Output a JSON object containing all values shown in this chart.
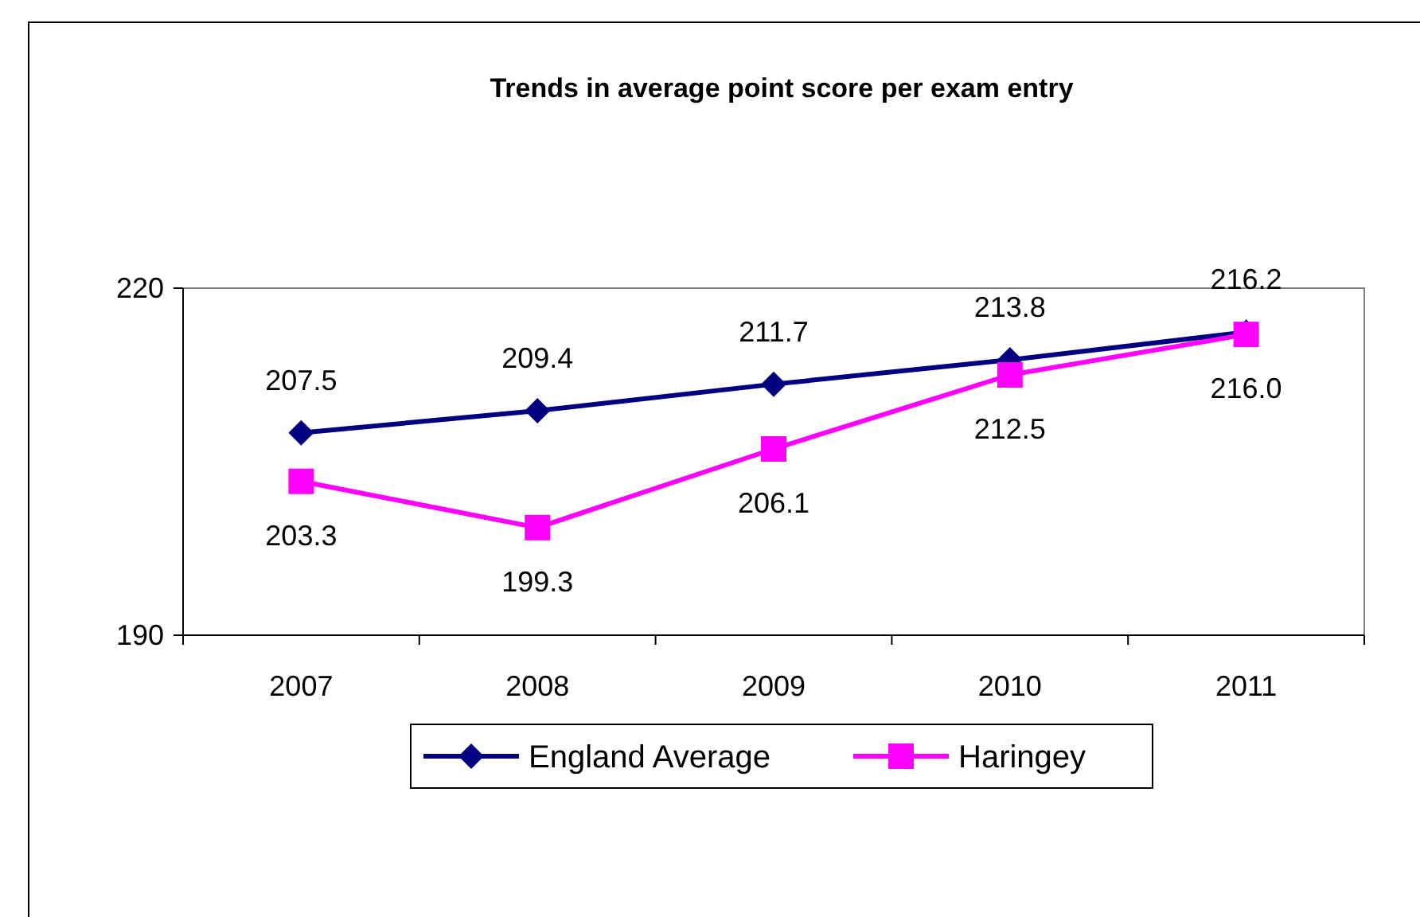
{
  "chart_data": {
    "type": "line",
    "title": "Trends in average point score per exam entry",
    "categories": [
      "2007",
      "2008",
      "2009",
      "2010",
      "2011"
    ],
    "series": [
      {
        "name": "England Average",
        "color": "#000080",
        "marker": "diamond",
        "values": [
          207.5,
          209.4,
          211.7,
          213.8,
          216.2
        ],
        "value_labels": [
          "207.5",
          "209.4",
          "211.7",
          "213.8",
          "216.2"
        ]
      },
      {
        "name": "Haringey",
        "color": "#ff00ff",
        "marker": "square",
        "values": [
          203.3,
          199.3,
          206.1,
          212.5,
          216.0
        ],
        "value_labels": [
          "203.3",
          "199.3",
          "206.1",
          "212.5",
          "216.0"
        ]
      }
    ],
    "ylim": [
      190,
      220
    ],
    "yticks": [
      190,
      220
    ],
    "grid": false,
    "legend": "bottom"
  }
}
